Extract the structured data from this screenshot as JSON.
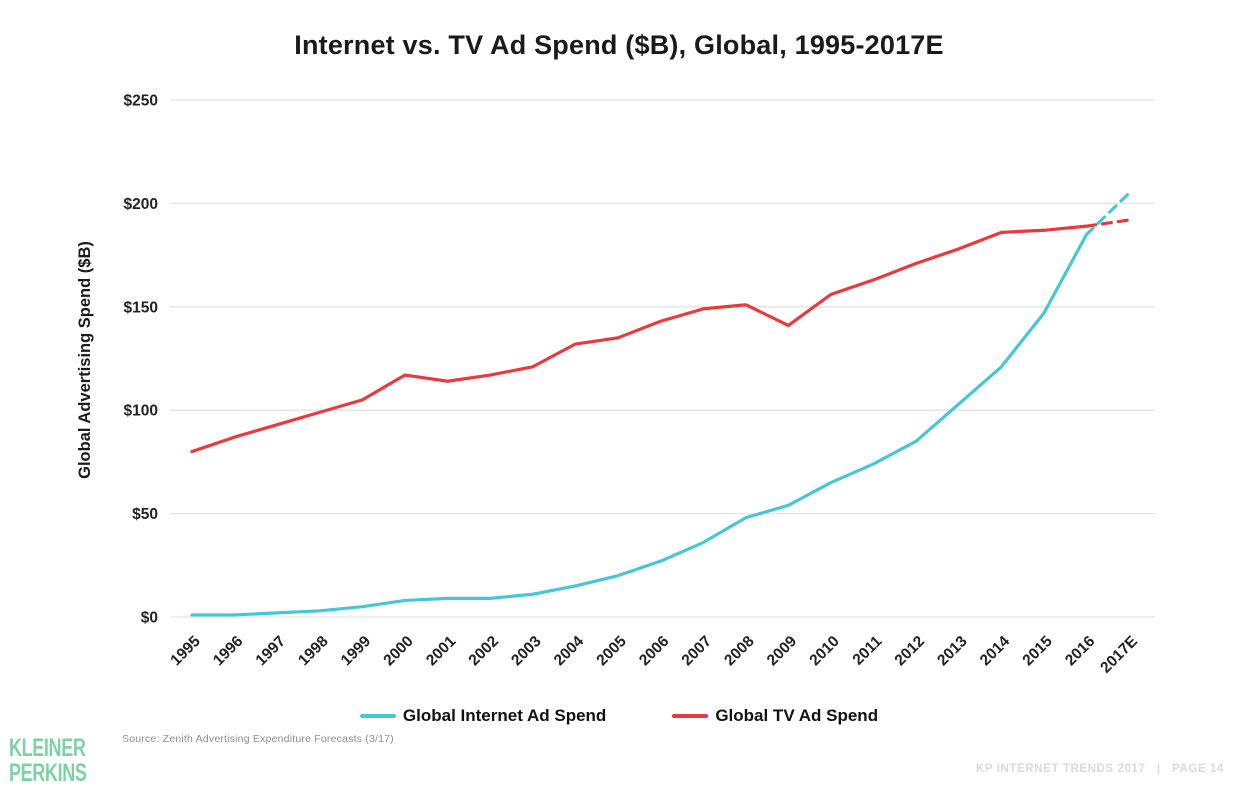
{
  "chart_data": {
    "type": "line",
    "title": "Internet vs. TV Ad Spend ($B), Global, 1995-2017E",
    "xlabel": "",
    "ylabel": "Global Advertising Spend ($B)",
    "ylim": [
      0,
      250
    ],
    "ytick_values": [
      0,
      50,
      100,
      150,
      200,
      250
    ],
    "ytick_labels": [
      "$0",
      "$50",
      "$100",
      "$150",
      "$200",
      "$250"
    ],
    "grid": "horizontal",
    "legend_position": "bottom",
    "forecast_note": "last segment (2016 to 2017E) drawn dashed as estimate",
    "categories": [
      "1995",
      "1996",
      "1997",
      "1998",
      "1999",
      "2000",
      "2001",
      "2002",
      "2003",
      "2004",
      "2005",
      "2006",
      "2007",
      "2008",
      "2009",
      "2010",
      "2011",
      "2012",
      "2013",
      "2014",
      "2015",
      "2016",
      "2017E"
    ],
    "series": [
      {
        "name": "Global Internet Ad Spend",
        "color": "#47C6D8",
        "values": [
          1,
          1,
          2,
          3,
          5,
          8,
          9,
          9,
          11,
          15,
          20,
          27,
          36,
          48,
          54,
          65,
          74,
          85,
          103,
          121,
          147,
          185,
          205
        ]
      },
      {
        "name": "Global TV Ad Spend",
        "color": "#E8393D",
        "values": [
          80,
          87,
          93,
          99,
          105,
          117,
          114,
          117,
          121,
          132,
          135,
          143,
          149,
          151,
          141,
          156,
          163,
          171,
          178,
          186,
          187,
          189,
          192
        ]
      }
    ]
  },
  "legend": {
    "items": [
      {
        "label": "Global Internet Ad Spend",
        "color": "#47C6D8"
      },
      {
        "label": "Global TV Ad Spend",
        "color": "#E8393D"
      }
    ]
  },
  "footer": {
    "source": "Source: Zenith Advertising Expenditure Forecasts (3/17)",
    "logo_line1": "KLEINER",
    "logo_line2": "PERKINS",
    "logo_color": "#7DD2A5",
    "right_text": "KP INTERNET TRENDS 2017   |   PAGE 14"
  }
}
